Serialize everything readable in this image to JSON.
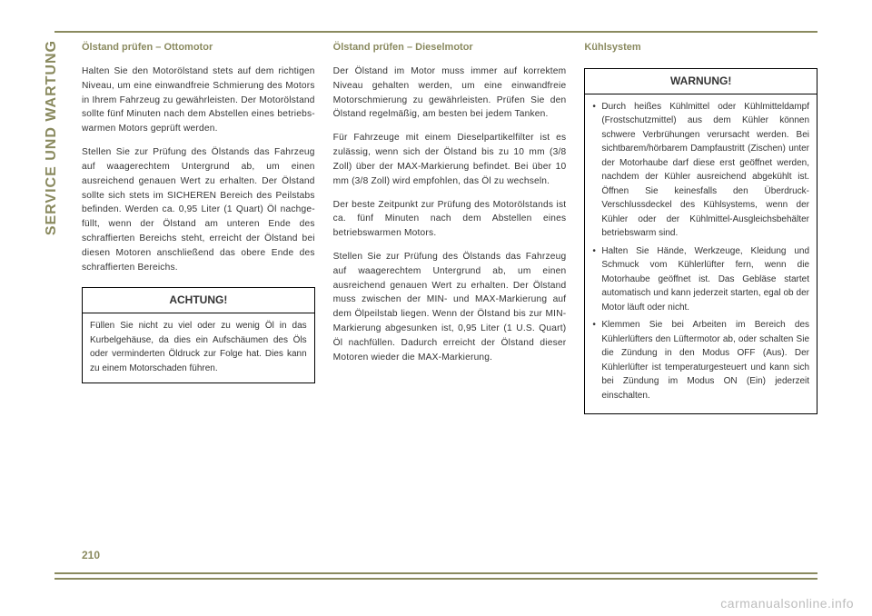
{
  "section_label": "SERVICE UND WARTUNG",
  "page_number": "210",
  "watermark": "carmanualsonline.info",
  "col1": {
    "heading": "Ölstand prüfen – Ottomotor",
    "p1": "Halten Sie den Motorölstand stets auf dem richtigen Niveau, um eine einwandfreie Schmierung des Motors in Ihrem Fahrzeug zu gewährleisten. Der Motorölstand sollte fünf Minuten nach dem Abstellen eines betriebs­warmen Motors geprüft werden.",
    "p2": "Stellen Sie zur Prüfung des Ölstands das Fahrzeug auf waagerechtem Untergrund ab, um einen ausreichend genauen Wert zu er­halten. Der Ölstand sollte sich stets im SI­CHEREN Bereich des Peilstabs befinden. Werden ca. 0,95 Liter (1 Quart) Öl nachge­füllt, wenn der Ölstand am unteren Ende des schraffierten Bereichs steht, erreicht der Öl­stand bei diesen Motoren anschließend das obere Ende des schraffierten Bereichs.",
    "box_title": "ACHTUNG!",
    "box_body": "Füllen Sie nicht zu viel oder zu wenig Öl in das Kurbelgehäuse, da dies ein Aufschäu­men des Öls oder verminderten Öldruck zur Folge hat. Dies kann zu einem Motor­schaden führen."
  },
  "col2": {
    "heading": "Ölstand prüfen – Dieselmotor",
    "p1": "Der Ölstand im Motor muss immer auf kor­rektem Niveau gehalten werden, um eine einwandfreie Motorschmierung zu gewähr­leisten. Prüfen Sie den Ölstand regelmäßig, am besten bei jedem Tanken.",
    "p2": "Für Fahrzeuge mit einem Dieselpartikelfilter ist es zulässig, wenn sich der Ölstand bis zu 10 mm (3/8 Zoll) über der MAX-Markierung befindet. Bei über 10 mm (3/8 Zoll) wird empfohlen, das Öl zu wechseln.",
    "p3": "Der beste Zeitpunkt zur Prüfung des Motor­ölstands ist ca. fünf Minuten nach dem Ab­stellen eines betriebswarmen Motors.",
    "p4": "Stellen Sie zur Prüfung des Ölstands das Fahrzeug auf waagerechtem Untergrund ab, um einen ausreichend genauen Wert zu er­halten. Der Ölstand muss zwischen der MIN- und MAX-Markierung auf dem Ölpeilstab lie­gen. Wenn der Ölstand bis zur MIN-Markierung abgesunken ist, 0,95 Liter (1 U.S. Quart) Öl nachfüllen. Dadurch er­reicht der Ölstand dieser Motoren wieder die MAX-Markierung."
  },
  "col3": {
    "heading": "Kühlsystem",
    "box_title": "WARNUNG!",
    "li1": "Durch heißes Kühlmittel oder Kühlmittel­dampf (Frostschutzmittel) aus dem Kühler können schwere Verbrühungen verursacht werden. Bei sichtbarem/hörbarem Dampf­austritt (Zischen) unter der Motorhaube darf diese erst geöffnet werden, nachdem der Kühler ausreichend abgekühlt ist. Öffnen Sie keinesfalls den Überdruck-Verschlussdeckel des Kühlsystems, wenn der Kühler oder der Kühlmittel-Ausgleichsbehälter betriebswarm sind.",
    "li2": "Halten Sie Hände, Werkzeuge, Kleidung und Schmuck vom Kühlerlüfter fern, wenn die Motorhaube geöffnet ist. Das Gebläse startet automatisch und kann jederzeit starten, egal ob der Motor läuft oder nicht.",
    "li3": "Klemmen Sie bei Arbeiten im Bereich des Kühlerlüfters den Lüftermotor ab, oder schalten Sie die Zündung in den Modus OFF (Aus). Der Kühlerlüfter ist tempera­turgesteuert und kann sich bei Zündung im Modus ON (Ein) jederzeit einschalten."
  }
}
